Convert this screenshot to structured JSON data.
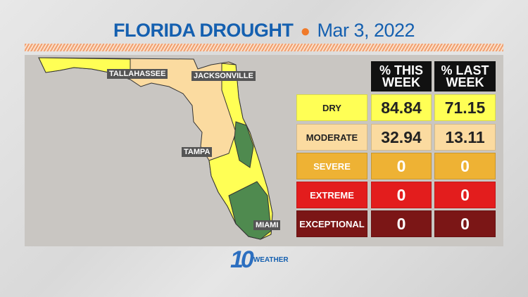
{
  "title": {
    "main": "FLORIDA DROUGHT",
    "date": "Mar 3, 2022"
  },
  "cities": [
    "TALLAHASSEE",
    "JACKSONVILLE",
    "TAMPA",
    "MIAMI"
  ],
  "table": {
    "headers": [
      "% THIS WEEK",
      "% LAST WEEK"
    ],
    "rows": [
      {
        "label": "DRY",
        "this_week": "84.84",
        "last_week": "71.15",
        "color": "#ffff55",
        "text": "#222"
      },
      {
        "label": "MODERATE",
        "this_week": "32.94",
        "last_week": "13.11",
        "color": "#fbdba0",
        "text": "#222"
      },
      {
        "label": "SEVERE",
        "this_week": "0",
        "last_week": "0",
        "color": "#eeb234",
        "text": "#fff"
      },
      {
        "label": "EXTREME",
        "this_week": "0",
        "last_week": "0",
        "color": "#e31d1d",
        "text": "#fff"
      },
      {
        "label": "EXCEPTIONAL",
        "this_week": "0",
        "last_week": "0",
        "color": "#7b1616",
        "text": "#fff"
      }
    ]
  },
  "logo": {
    "number": "10",
    "word": "WEATHER"
  }
}
